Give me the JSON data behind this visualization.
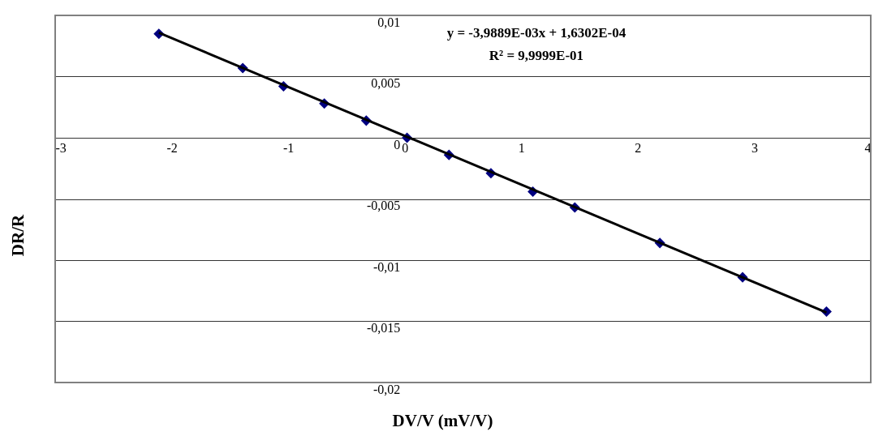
{
  "chart_data": {
    "type": "scatter",
    "xlabel": "DV/V (mV/V)",
    "ylabel": "DR/R",
    "x": [
      -2.11,
      -1.39,
      -1.04,
      -0.69,
      -0.33,
      0.02,
      0.38,
      0.74,
      1.1,
      1.46,
      2.19,
      2.9,
      3.62
    ],
    "series": [
      {
        "color": "#000080",
        "marker": "diamond",
        "values": [
          0.0085,
          0.0057,
          0.0042,
          0.0028,
          0.0014,
          0.0,
          -0.0014,
          -0.0029,
          -0.0044,
          -0.0057,
          -0.0086,
          -0.0114,
          -0.0142
        ]
      },
      {
        "type": "line",
        "color": "#000000",
        "marker": "none",
        "x": [
          -2.11,
          3.62
        ],
        "values": [
          0.00858,
          -0.01428
        ]
      }
    ],
    "xlim": [
      -3,
      4
    ],
    "xticks": [
      -3,
      -2,
      -1,
      0,
      1,
      2,
      3,
      4
    ],
    "ylim": [
      -0.02,
      0.01
    ],
    "yticks": [
      {
        "value": -0.02,
        "label": "-0,02"
      },
      {
        "value": -0.015,
        "label": "-0,015"
      },
      {
        "value": -0.01,
        "label": "-0,01"
      },
      {
        "value": -0.005,
        "label": "-0,005"
      },
      {
        "value": 0,
        "label": "0"
      },
      {
        "value": 0.005,
        "label": "0,005"
      },
      {
        "value": 0.01,
        "label": "0,01"
      }
    ],
    "grid": "y",
    "annotations": [
      "y = -3,9889E-03x + 1,6302E-04",
      "R² = 9,9999E-01"
    ]
  }
}
